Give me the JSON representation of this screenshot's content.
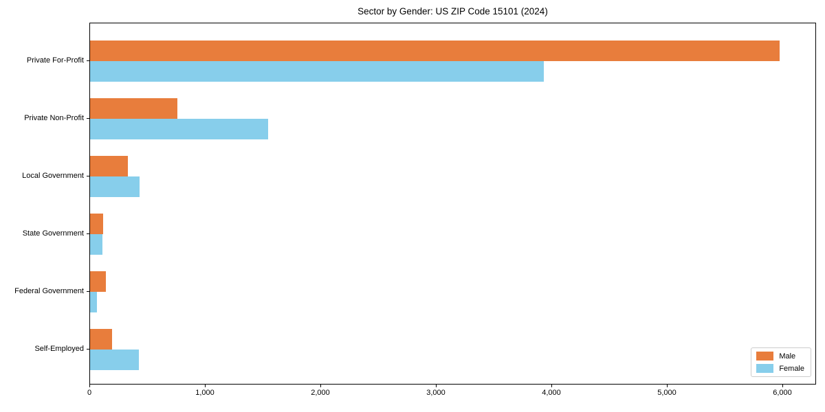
{
  "chart_data": {
    "type": "bar",
    "orientation": "horizontal",
    "title": "Sector by Gender: US ZIP Code 15101 (2024)",
    "xlabel": "",
    "ylabel": "",
    "categories": [
      "Private For-Profit",
      "Private Non-Profit",
      "Local Government",
      "State Government",
      "Federal Government",
      "Self-Employed"
    ],
    "series": [
      {
        "name": "Male",
        "color": "#e87d3c",
        "values": [
          5970,
          755,
          325,
          113,
          137,
          190
        ]
      },
      {
        "name": "Female",
        "color": "#87ceeb",
        "values": [
          3930,
          1540,
          430,
          105,
          60,
          420
        ]
      }
    ],
    "xlim": [
      0,
      6280
    ],
    "x_ticks": [
      {
        "value": 0,
        "label": "0"
      },
      {
        "value": 1000,
        "label": "1,000"
      },
      {
        "value": 2000,
        "label": "2,000"
      },
      {
        "value": 3000,
        "label": "3,000"
      },
      {
        "value": 4000,
        "label": "4,000"
      },
      {
        "value": 5000,
        "label": "5,000"
      },
      {
        "value": 6000,
        "label": "6,000"
      }
    ],
    "grid": false,
    "legend_position": "lower right",
    "legend_labels": [
      "Male",
      "Female"
    ],
    "axis_color": "#000000",
    "background_color": "#ffffff"
  }
}
